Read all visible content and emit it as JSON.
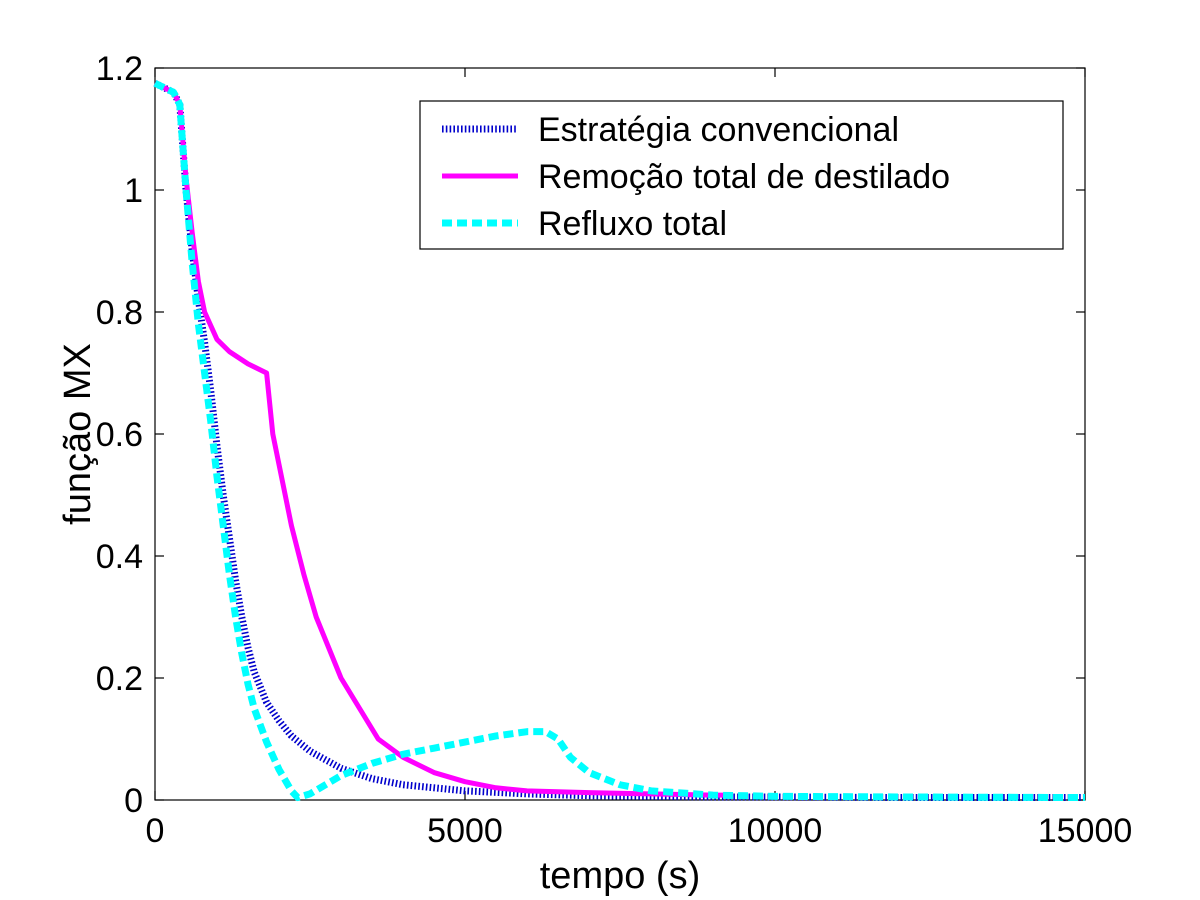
{
  "chart_data": {
    "type": "line",
    "title": "",
    "xlabel": "tempo (s)",
    "ylabel": "função MX",
    "xlim": [
      0,
      15000
    ],
    "ylim": [
      0,
      1.2
    ],
    "xticks": [
      0,
      5000,
      10000,
      15000
    ],
    "xtick_labels": [
      "0",
      "5000",
      "10000",
      "15000"
    ],
    "yticks": [
      0,
      0.2,
      0.4,
      0.6,
      0.8,
      1,
      1.2
    ],
    "ytick_labels": [
      "0",
      "0.2",
      "0.4",
      "0.6",
      "0.8",
      "1",
      "1.2"
    ],
    "grid": false,
    "legend_position": "top-right",
    "series": [
      {
        "name": "Estratégia convencional",
        "color": "#0000cc",
        "style": "dotted",
        "points": [
          [
            0,
            1.175
          ],
          [
            300,
            1.16
          ],
          [
            400,
            1.14
          ],
          [
            500,
            1.0
          ],
          [
            600,
            0.9
          ],
          [
            700,
            0.82
          ],
          [
            800,
            0.75
          ],
          [
            900,
            0.67
          ],
          [
            1000,
            0.58
          ],
          [
            1100,
            0.5
          ],
          [
            1200,
            0.43
          ],
          [
            1300,
            0.36
          ],
          [
            1400,
            0.3
          ],
          [
            1500,
            0.25
          ],
          [
            1600,
            0.21
          ],
          [
            1800,
            0.16
          ],
          [
            2000,
            0.13
          ],
          [
            2200,
            0.105
          ],
          [
            2500,
            0.08
          ],
          [
            3000,
            0.052
          ],
          [
            3500,
            0.035
          ],
          [
            4000,
            0.025
          ],
          [
            5000,
            0.015
          ],
          [
            6000,
            0.01
          ],
          [
            7000,
            0.007
          ],
          [
            8000,
            0.006
          ],
          [
            9000,
            0.005
          ],
          [
            10000,
            0.005
          ],
          [
            12000,
            0.004
          ],
          [
            15000,
            0.004
          ]
        ]
      },
      {
        "name": "Remoção total de destilado",
        "color": "#ff00ff",
        "style": "solid",
        "points": [
          [
            0,
            1.175
          ],
          [
            300,
            1.16
          ],
          [
            400,
            1.14
          ],
          [
            500,
            1.02
          ],
          [
            600,
            0.93
          ],
          [
            700,
            0.85
          ],
          [
            800,
            0.8
          ],
          [
            1000,
            0.755
          ],
          [
            1200,
            0.735
          ],
          [
            1500,
            0.715
          ],
          [
            1800,
            0.7
          ],
          [
            1850,
            0.65
          ],
          [
            1900,
            0.6
          ],
          [
            2000,
            0.55
          ],
          [
            2200,
            0.45
          ],
          [
            2400,
            0.37
          ],
          [
            2600,
            0.3
          ],
          [
            2800,
            0.25
          ],
          [
            3000,
            0.2
          ],
          [
            3300,
            0.15
          ],
          [
            3600,
            0.1
          ],
          [
            4000,
            0.07
          ],
          [
            4500,
            0.045
          ],
          [
            5000,
            0.03
          ],
          [
            5500,
            0.02
          ],
          [
            6000,
            0.015
          ],
          [
            7000,
            0.012
          ],
          [
            8000,
            0.01
          ],
          [
            9000,
            0.008
          ],
          [
            9300,
            0.008
          ]
        ]
      },
      {
        "name": "Refluxo total",
        "color": "#00ffff",
        "style": "dashed",
        "points": [
          [
            0,
            1.175
          ],
          [
            300,
            1.16
          ],
          [
            400,
            1.14
          ],
          [
            500,
            1.0
          ],
          [
            600,
            0.88
          ],
          [
            700,
            0.78
          ],
          [
            800,
            0.7
          ],
          [
            900,
            0.62
          ],
          [
            1000,
            0.53
          ],
          [
            1100,
            0.45
          ],
          [
            1200,
            0.37
          ],
          [
            1300,
            0.3
          ],
          [
            1400,
            0.24
          ],
          [
            1500,
            0.19
          ],
          [
            1600,
            0.15
          ],
          [
            1800,
            0.095
          ],
          [
            2000,
            0.05
          ],
          [
            2200,
            0.015
          ],
          [
            2300,
            0.004
          ],
          [
            2500,
            0.01
          ],
          [
            3000,
            0.04
          ],
          [
            3500,
            0.06
          ],
          [
            4000,
            0.075
          ],
          [
            4500,
            0.085
          ],
          [
            5000,
            0.095
          ],
          [
            5500,
            0.105
          ],
          [
            6000,
            0.112
          ],
          [
            6300,
            0.112
          ],
          [
            6500,
            0.1
          ],
          [
            6700,
            0.07
          ],
          [
            7000,
            0.045
          ],
          [
            7500,
            0.025
          ],
          [
            8000,
            0.015
          ],
          [
            9000,
            0.008
          ],
          [
            10000,
            0.006
          ],
          [
            12000,
            0.005
          ],
          [
            15000,
            0.004
          ]
        ]
      }
    ]
  }
}
